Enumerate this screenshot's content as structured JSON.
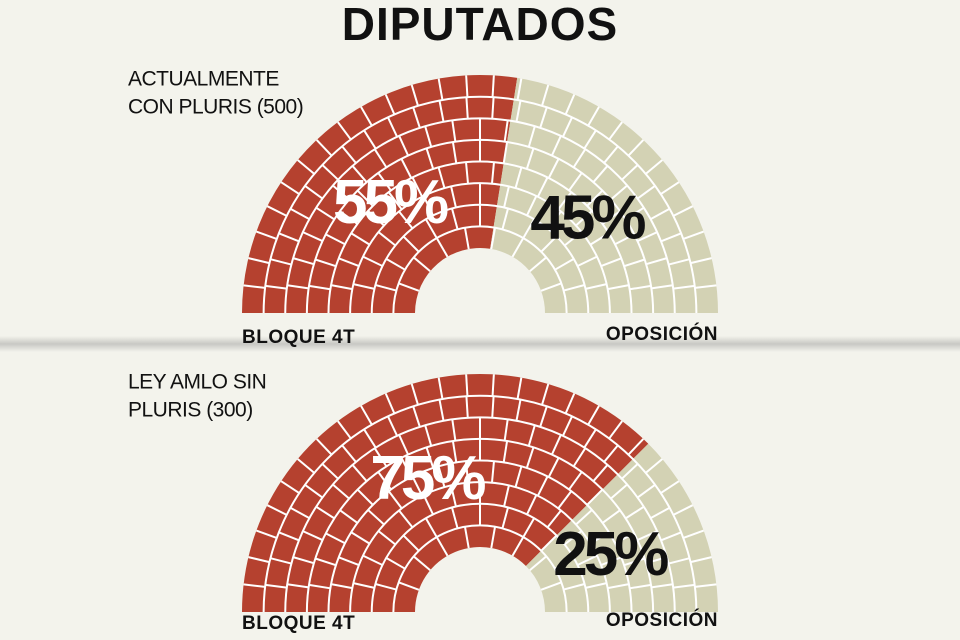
{
  "title": "DIPUTADOS",
  "chart_data": [
    {
      "type": "parliament",
      "subtitle": [
        "ACTUALMENTE",
        "CON PLURIS (500)"
      ],
      "categories": [
        "BLOQUE 4T",
        "OPOSICIÓN"
      ],
      "values": [
        55,
        45
      ],
      "value_labels": [
        "55%",
        "45%"
      ],
      "colors": [
        "#b5412f",
        "#d3d2b4"
      ],
      "label_colors": [
        "#ffffff",
        "#111111"
      ]
    },
    {
      "type": "parliament",
      "subtitle": [
        "LEY AMLO SIN",
        "PLURIS (300)"
      ],
      "categories": [
        "BLOQUE 4T",
        "OPOSICIÓN"
      ],
      "values": [
        75,
        25
      ],
      "value_labels": [
        "75%",
        "25%"
      ],
      "colors": [
        "#b5412f",
        "#d3d2b4"
      ],
      "label_colors": [
        "#ffffff",
        "#111111"
      ]
    }
  ]
}
